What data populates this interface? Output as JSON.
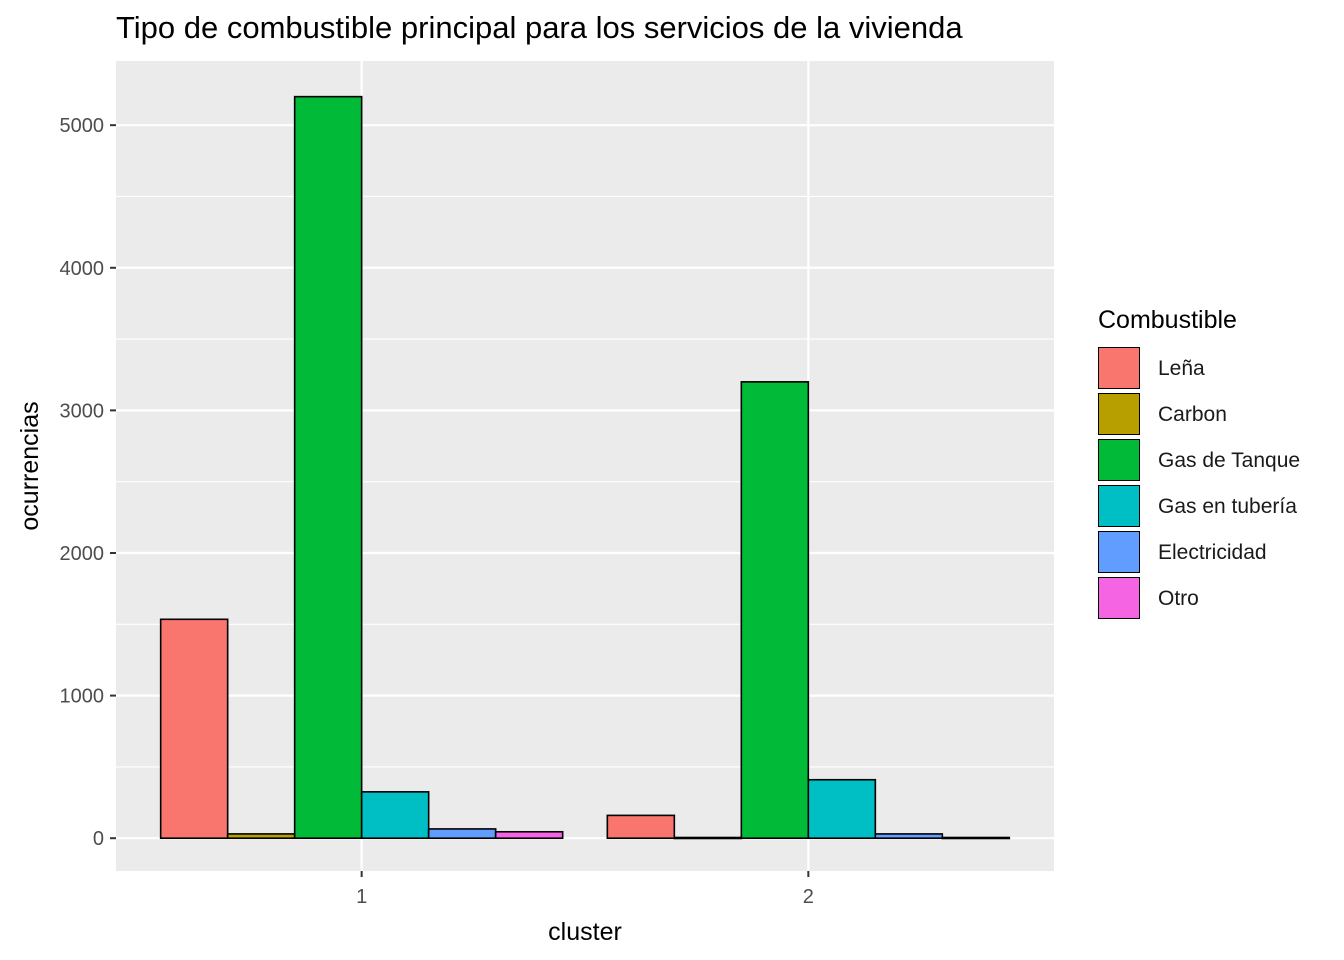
{
  "chart_data": {
    "type": "bar",
    "title": "Tipo de combustible principal para los servicios de la vivienda",
    "xlabel": "cluster",
    "ylabel": "ocurrencias",
    "categories": [
      "1",
      "2"
    ],
    "ylim": [
      -230,
      5450
    ],
    "y_ticks": [
      0,
      1000,
      2000,
      3000,
      4000,
      5000
    ],
    "legend_title": "Combustible",
    "legend_position": "right",
    "grid": true,
    "series": [
      {
        "name": "Leña",
        "color": "#F8766D",
        "values": [
          1535,
          160
        ]
      },
      {
        "name": "Carbon",
        "color": "#B79F00",
        "values": [
          30,
          5
        ]
      },
      {
        "name": "Gas de Tanque",
        "color": "#00BA38",
        "values": [
          5200,
          3200
        ]
      },
      {
        "name": "Gas en tubería",
        "color": "#00BFC4",
        "values": [
          325,
          410
        ]
      },
      {
        "name": "Electricidad",
        "color": "#619CFF",
        "values": [
          65,
          30
        ]
      },
      {
        "name": "Otro",
        "color": "#F564E3",
        "values": [
          45,
          5
        ]
      }
    ]
  }
}
